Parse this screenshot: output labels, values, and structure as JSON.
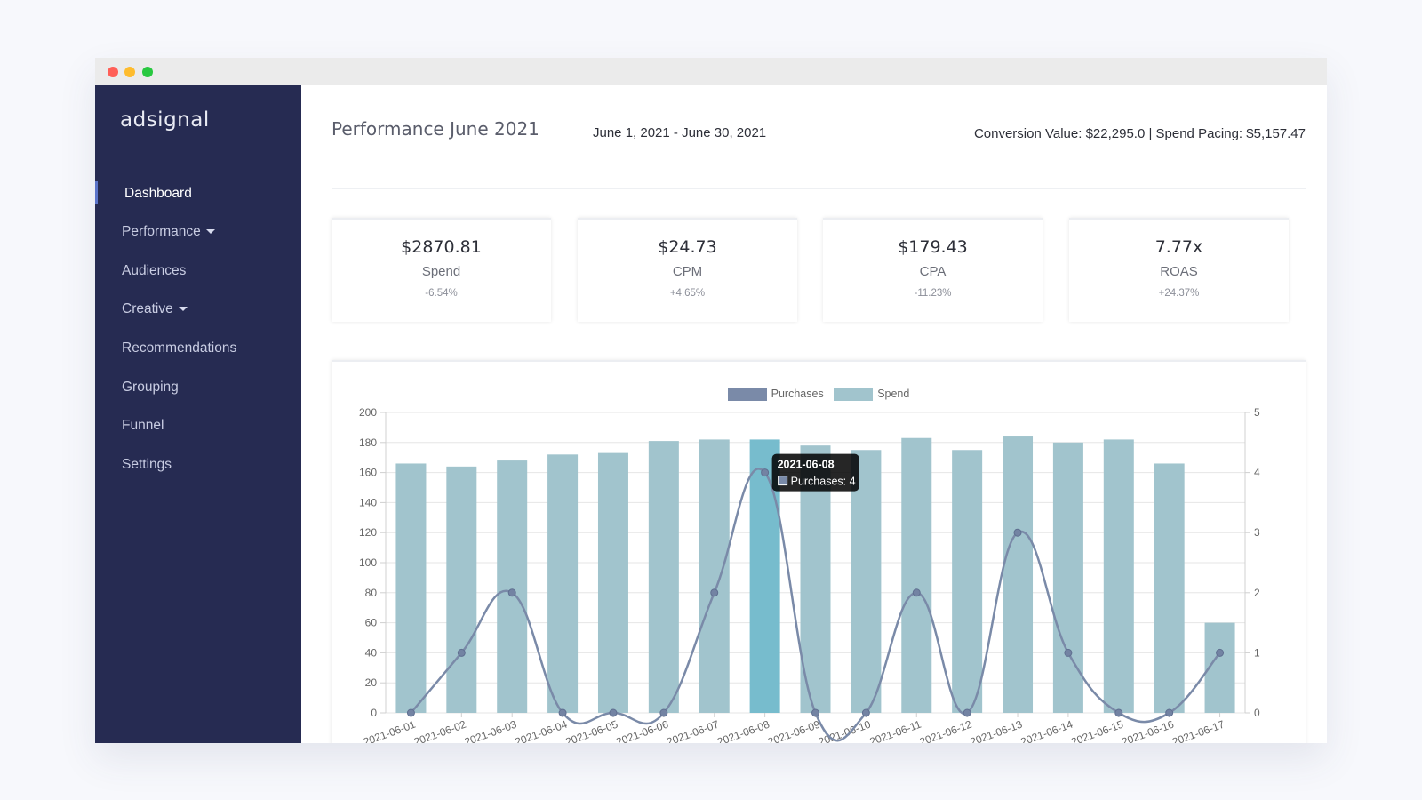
{
  "app": {
    "name": "adsignal"
  },
  "sidebar": {
    "items": [
      {
        "label": "Dashboard",
        "active": true,
        "dropdown": false
      },
      {
        "label": "Performance",
        "dropdown": true
      },
      {
        "label": "Audiences",
        "dropdown": false
      },
      {
        "label": "Creative",
        "dropdown": true
      },
      {
        "label": "Recommendations",
        "dropdown": false
      },
      {
        "label": "Grouping",
        "dropdown": false
      },
      {
        "label": "Funnel",
        "dropdown": false
      },
      {
        "label": "Settings",
        "dropdown": false
      }
    ]
  },
  "header": {
    "title": "Performance June 2021",
    "date_range": "June 1, 2021 - June 30, 2021",
    "summary": "Conversion Value: $22,295.0 | Spend Pacing: $5,157.47"
  },
  "kpis": [
    {
      "value": "$2870.81",
      "label": "Spend",
      "change": "-6.54%"
    },
    {
      "value": "$24.73",
      "label": "CPM",
      "change": "+4.65%"
    },
    {
      "value": "$179.43",
      "label": "CPA",
      "change": "-11.23%"
    },
    {
      "value": "7.77x",
      "label": "ROAS",
      "change": "+24.37%"
    }
  ],
  "colors": {
    "sidebar_bg": "#262b52",
    "spend_bar": "#a1c4cd",
    "spend_bar_highlight": "#77bccd",
    "purchases_line": "#7a8aa8"
  },
  "chart_data": {
    "type": "bar",
    "legend": [
      "Purchases",
      "Spend"
    ],
    "categories": [
      "2021-06-01",
      "2021-06-02",
      "2021-06-03",
      "2021-06-04",
      "2021-06-05",
      "2021-06-06",
      "2021-06-07",
      "2021-06-08",
      "2021-06-09",
      "2021-06-10",
      "2021-06-11",
      "2021-06-12",
      "2021-06-13",
      "2021-06-14",
      "2021-06-15",
      "2021-06-16",
      "2021-06-17"
    ],
    "series": [
      {
        "name": "Spend",
        "type": "bar",
        "axis": "left",
        "values": [
          166,
          164,
          168,
          172,
          173,
          181,
          182,
          182,
          178,
          175,
          183,
          175,
          184,
          180,
          182,
          166,
          60
        ]
      },
      {
        "name": "Purchases",
        "type": "line",
        "axis": "right",
        "values": [
          0,
          1,
          2,
          0,
          0,
          0,
          2,
          4,
          0,
          0,
          2,
          0,
          3,
          1,
          0,
          0,
          1
        ]
      }
    ],
    "ylim_left": [
      0,
      200
    ],
    "yticks_left": [
      0,
      20,
      40,
      60,
      80,
      100,
      120,
      140,
      160,
      180,
      200
    ],
    "ylim_right": [
      0,
      5
    ],
    "yticks_right": [
      0,
      1,
      2,
      3,
      4,
      5
    ],
    "grid": true,
    "legend_position": "top-center",
    "highlight_index": 7,
    "tooltip": {
      "title": "2021-06-08",
      "label": "Purchases: 4"
    }
  }
}
